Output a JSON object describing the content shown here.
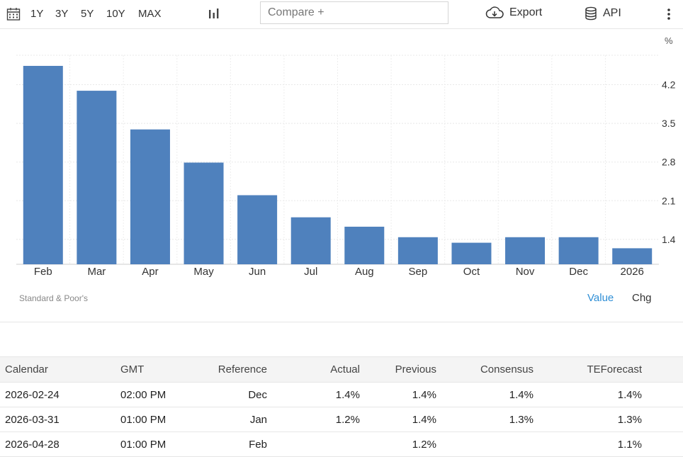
{
  "toolbar": {
    "calendar_icon": "calendar-icon",
    "ranges": [
      "1Y",
      "3Y",
      "5Y",
      "10Y",
      "MAX"
    ],
    "chart_type_icon": "bar-chart-icon",
    "compare_placeholder": "Compare +",
    "export_label": "Export",
    "api_label": "API",
    "more_icon": "kebab-menu-icon"
  },
  "chart_data": {
    "type": "bar",
    "categories": [
      "Feb",
      "Mar",
      "Apr",
      "May",
      "Jun",
      "Jul",
      "Aug",
      "Sep",
      "Oct",
      "Nov",
      "Dec",
      "2026"
    ],
    "values": [
      4.54,
      4.09,
      3.39,
      2.79,
      2.2,
      1.8,
      1.63,
      1.44,
      1.34,
      1.44,
      1.44,
      1.24
    ],
    "unit": "%",
    "yticks": [
      1.4,
      2.1,
      2.8,
      3.5,
      4.2
    ],
    "ylim": [
      0.95,
      4.9
    ],
    "grid": true,
    "bar_color": "#4f81bd"
  },
  "source_label": "Standard & Poor's",
  "toggle": {
    "value_label": "Value",
    "chg_label": "Chg",
    "active_color": "#2f8fd6"
  },
  "calendar": {
    "headers": [
      "Calendar",
      "GMT",
      "Reference",
      "Actual",
      "Previous",
      "Consensus",
      "TEForecast"
    ],
    "rows": [
      [
        "2026-02-24",
        "02:00 PM",
        "Dec",
        "1.4%",
        "1.4%",
        "1.4%",
        "1.4%"
      ],
      [
        "2026-03-31",
        "01:00 PM",
        "Jan",
        "1.2%",
        "1.4%",
        "1.3%",
        "1.3%"
      ],
      [
        "2026-04-28",
        "01:00 PM",
        "Feb",
        "",
        "1.2%",
        "",
        "1.1%"
      ]
    ]
  }
}
